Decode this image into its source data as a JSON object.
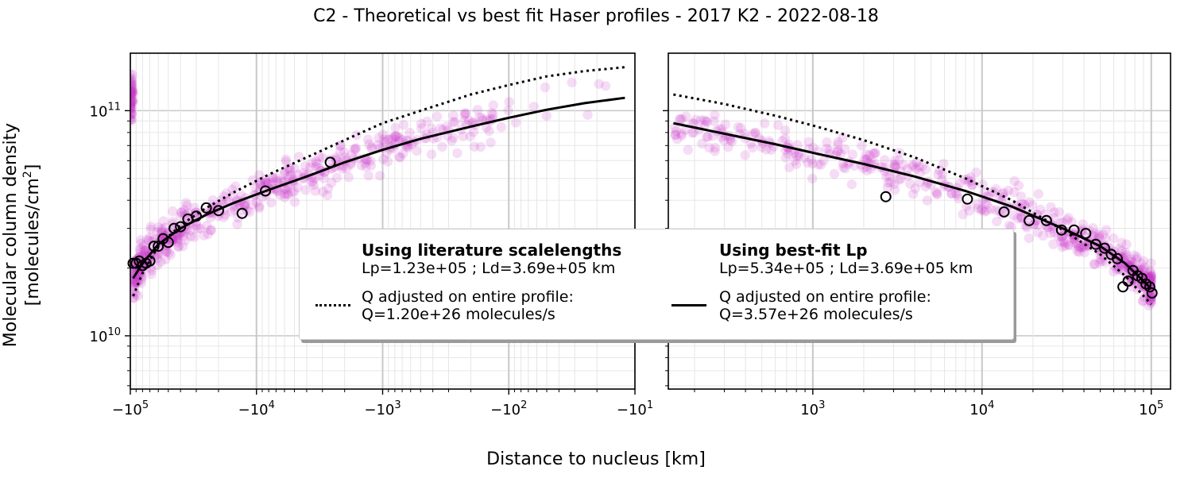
{
  "title": "C2 - Theoretical vs best fit Haser profiles - 2017 K2 - 2022-08-18",
  "ylabel_line1": "Molecular column density",
  "ylabel_line2_prefix": "[molecules/cm",
  "ylabel_line2_sup": "2",
  "ylabel_line2_suffix": "]",
  "xlabel": "Distance to nucleus [km]",
  "legend": {
    "literature": {
      "title": "Using literature scalelengths",
      "scales": "Lp=1.23e+05 ; Ld=3.69e+05 km",
      "q_line1": "Q adjusted on entire profile:",
      "q_line2": "Q=1.20e+26 molecules/s"
    },
    "bestfit": {
      "title": "Using best-fit Lp",
      "scales": "Lp=5.34e+05 ; Ld=3.69e+05 km",
      "q_line1": "Q adjusted on entire profile:",
      "q_line2": "Q=3.57e+26 molecules/s"
    }
  },
  "colors": {
    "scatter": "#cc33cc",
    "binned_edge": "#000000",
    "literature_line": "#000000",
    "bestfit_line": "#000000",
    "grid": "#e6e6e6",
    "decade_grid": "#c8c8c8"
  },
  "chart_data": [
    {
      "type": "scatter",
      "panel": "left",
      "x_scale": "symlog-negative (log of |x|)",
      "y_scale": "log",
      "xlim": [
        -100000,
        -10
      ],
      "ylim": [
        5800000000.0,
        180000000000.0
      ],
      "x_ticks": [
        -100000,
        -10000,
        -1000,
        -100,
        -10
      ],
      "x_tick_labels": [
        "−10^5",
        "−10^4",
        "−10^3",
        "−10^2",
        "−10^1"
      ],
      "y_ticks": [
        10000000000.0,
        100000000000.0
      ],
      "y_tick_labels": [
        "10^10",
        "10^11"
      ],
      "grid": true,
      "series": [
        {
          "kind": "binned",
          "marker": "open-circle",
          "x": [
            -95000,
            -90000,
            -85000,
            -80000,
            -75000,
            -70000,
            -65000,
            -60000,
            -55000,
            -50000,
            -45000,
            -40000,
            -35000,
            -30000,
            -25000,
            -20000,
            -13000,
            -8500,
            -2600
          ],
          "y": [
            21000000000.0,
            21000000000.0,
            21500000000.0,
            20500000000.0,
            21000000000.0,
            21500000000.0,
            25000000000.0,
            25000000000.0,
            27000000000.0,
            26000000000.0,
            30000000000.0,
            30500000000.0,
            33000000000.0,
            34000000000.0,
            37000000000.0,
            36000000000.0,
            35000000000.0,
            44000000000.0,
            59000000000.0
          ]
        },
        {
          "name": "Using literature scalelengths",
          "kind": "model",
          "line_style": "dotted",
          "x": [
            -95000,
            -80000,
            -60000,
            -40000,
            -25000,
            -15000,
            -8000,
            -4000,
            -2000,
            -1000,
            -500,
            -200,
            -100,
            -50,
            -25,
            -12
          ],
          "y": [
            15000000000.0,
            19000000000.0,
            25000000000.0,
            31000000000.0,
            37000000000.0,
            43500000000.0,
            52000000000.0,
            62000000000.0,
            74000000000.0,
            88000000000.0,
            100000000000.0,
            118000000000.0,
            130000000000.0,
            142000000000.0,
            150000000000.0,
            156000000000.0
          ]
        },
        {
          "name": "Using best-fit Lp",
          "kind": "model",
          "line_style": "solid",
          "x": [
            -95000,
            -80000,
            -60000,
            -40000,
            -25000,
            -15000,
            -8000,
            -4000,
            -2000,
            -1000,
            -500,
            -200,
            -100,
            -50,
            -25,
            -12
          ],
          "y": [
            18000000000.0,
            21000000000.0,
            25500000000.0,
            30000000000.0,
            34500000000.0,
            39000000000.0,
            44500000000.0,
            51000000000.0,
            59000000000.0,
            67000000000.0,
            75000000000.0,
            85000000000.0,
            93000000000.0,
            101000000000.0,
            108000000000.0,
            114000000000.0
          ]
        }
      ]
    },
    {
      "type": "scatter",
      "panel": "right",
      "x_scale": "log",
      "y_scale": "log",
      "xlim": [
        140,
        130000
      ],
      "ylim": [
        5800000000.0,
        180000000000.0
      ],
      "x_ticks": [
        1000,
        10000,
        100000
      ],
      "x_tick_labels": [
        "10^3",
        "10^4",
        "10^5"
      ],
      "y_ticks": [
        10000000000.0,
        100000000000.0
      ],
      "grid": true,
      "series": [
        {
          "kind": "binned",
          "marker": "open-circle",
          "x": [
            2700,
            8200,
            13500,
            19000,
            24000,
            29500,
            35000,
            41000,
            47000,
            53000,
            58000,
            63000,
            68000,
            73000,
            78000,
            83000,
            88000,
            93000,
            98000,
            101000
          ],
          "y": [
            41500000000.0,
            40500000000.0,
            35500000000.0,
            32500000000.0,
            32500000000.0,
            29500000000.0,
            29500000000.0,
            28500000000.0,
            25500000000.0,
            24500000000.0,
            23000000000.0,
            22000000000.0,
            16500000000.0,
            17500000000.0,
            19500000000.0,
            18500000000.0,
            18000000000.0,
            17000000000.0,
            16500000000.0,
            15500000000.0
          ]
        },
        {
          "name": "Using literature scalelengths",
          "kind": "model",
          "line_style": "dotted",
          "x": [
            150,
            300,
            600,
            1000,
            2000,
            4000,
            8000,
            15000,
            30000,
            50000,
            70000,
            100000
          ],
          "y": [
            118000000000.0,
            107000000000.0,
            95000000000.0,
            86000000000.0,
            74000000000.0,
            62000000000.0,
            50000000000.0,
            40000000000.0,
            29500000000.0,
            23000000000.0,
            18500000000.0,
            13800000000.0
          ]
        },
        {
          "name": "Using best-fit Lp",
          "kind": "model",
          "line_style": "solid",
          "x": [
            150,
            300,
            600,
            1000,
            2000,
            4000,
            8000,
            15000,
            30000,
            50000,
            70000,
            100000
          ],
          "y": [
            88000000000.0,
            79000000000.0,
            71000000000.0,
            65000000000.0,
            58000000000.0,
            51000000000.0,
            44000000000.0,
            37500000000.0,
            30000000000.0,
            25000000000.0,
            21000000000.0,
            16200000000.0
          ]
        }
      ]
    }
  ]
}
